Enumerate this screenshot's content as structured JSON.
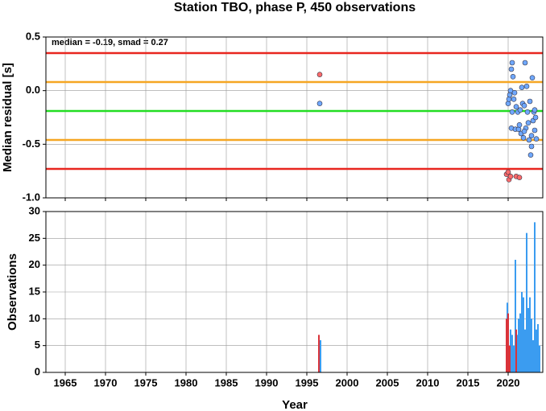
{
  "chart_data": [
    {
      "type": "scatter",
      "title": "Station TBO, phase P, 450 observations",
      "ylabel": "Median residual [s]",
      "annotation": "median = -0.19, smad = 0.27",
      "xlim": [
        1962.6,
        2024.3
      ],
      "xticks": [
        1965,
        1970,
        1975,
        1980,
        1985,
        1990,
        1995,
        2000,
        2005,
        2010,
        2015,
        2020
      ],
      "ylim": [
        -1,
        0.5
      ],
      "yticks": [
        {
          "value": -1,
          "label": "-1.0"
        },
        -0.5,
        {
          "value": 0,
          "label": "0.0"
        },
        0.5
      ],
      "grid": true,
      "reference_lines": [
        {
          "value": 0.35,
          "color": "#e8261f"
        },
        {
          "value": 0.08,
          "color": "#f5a623"
        },
        {
          "value": -0.19,
          "color": "#22dd22"
        },
        {
          "value": -0.46,
          "color": "#f5a623"
        },
        {
          "value": -0.73,
          "color": "#e8261f"
        }
      ],
      "series": [
        {
          "color": "#ff6b6b",
          "x": [
            1996.6,
            2019.8,
            2020.0,
            2020.1,
            2020.3,
            2021.0,
            2021.4
          ],
          "values": [
            0.15,
            -0.78,
            -0.76,
            -0.83,
            -0.8,
            -0.8,
            -0.81
          ]
        },
        {
          "color": "#6fa8ff",
          "x": [
            1996.6,
            2020.0,
            2020.1,
            2020.2,
            2020.3,
            2020.4,
            2020.5,
            2020.6,
            2020.5,
            2020.4,
            2020.7,
            2020.8,
            2020.9,
            2021.0,
            2021.2,
            2021.3,
            2021.5,
            2021.7,
            2021.8,
            2021.9,
            2021.6,
            2022.0,
            2022.1,
            2022.2,
            2022.3,
            2022.4,
            2022.5,
            2022.6,
            2022.7,
            2022.8,
            2022.9,
            2023.0,
            2023.1,
            2023.2,
            2023.3,
            2023.4,
            2023.5,
            2023.3,
            2022.9,
            2021.4,
            2022.0
          ],
          "values": [
            -0.12,
            -0.12,
            -0.08,
            -0.04,
            0.0,
            0.2,
            0.26,
            0.13,
            -0.2,
            -0.35,
            -0.08,
            -0.02,
            -0.36,
            -0.15,
            -0.2,
            -0.36,
            -0.18,
            0.03,
            -0.12,
            -0.44,
            -0.4,
            -0.14,
            0.26,
            -0.35,
            0.04,
            -0.2,
            -0.3,
            -0.46,
            -0.1,
            -0.6,
            -0.52,
            0.12,
            -0.28,
            -0.2,
            -0.37,
            -0.25,
            -0.45,
            -0.18,
            -0.42,
            -0.32,
            -0.38
          ]
        }
      ]
    },
    {
      "type": "bar",
      "xlabel": "Year",
      "ylabel": "Observations",
      "xlim": [
        1962.6,
        2024.3
      ],
      "xticks": [
        1965,
        1970,
        1975,
        1980,
        1985,
        1990,
        1995,
        2000,
        2005,
        2010,
        2015,
        2020
      ],
      "ylim": [
        0,
        30
      ],
      "yticks": [
        0,
        5,
        10,
        15,
        20,
        25,
        30
      ],
      "grid": true,
      "series": [
        {
          "color": "#3b9cf0",
          "x": [
            1996.7,
            2019.9,
            2020.1,
            2020.3,
            2020.5,
            2020.7,
            2020.9,
            2021.1,
            2021.3,
            2021.5,
            2021.7,
            2021.9,
            2022.1,
            2022.3,
            2022.5,
            2022.7,
            2022.9,
            2023.1,
            2023.3,
            2023.5,
            2023.7,
            2023.9
          ],
          "values": [
            6,
            13,
            5,
            8,
            7,
            5,
            21,
            7,
            10,
            11,
            15,
            14,
            8,
            26,
            12,
            14,
            10,
            6,
            28,
            8,
            9,
            5
          ]
        },
        {
          "color": "#d9333a",
          "x": [
            1996.5,
            2019.8,
            2020.0,
            2020.2,
            2021.0
          ],
          "values": [
            7,
            10,
            11,
            5,
            8
          ]
        }
      ]
    }
  ]
}
